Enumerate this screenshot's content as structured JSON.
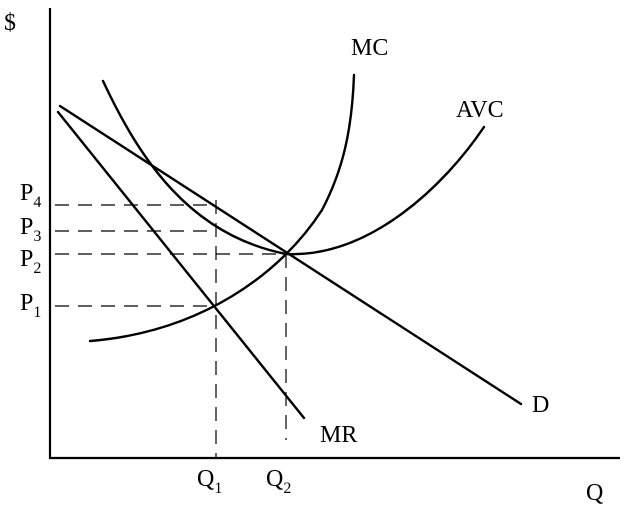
{
  "axes": {
    "y_label": "$",
    "x_label": "Q"
  },
  "curves": {
    "mc": "MC",
    "avc": "AVC",
    "demand": "D",
    "mr": "MR"
  },
  "price_levels": [
    {
      "letter": "P",
      "sub": "4"
    },
    {
      "letter": "P",
      "sub": "3"
    },
    {
      "letter": "P",
      "sub": "2"
    },
    {
      "letter": "P",
      "sub": "1"
    }
  ],
  "quantity_levels": [
    {
      "letter": "Q",
      "sub": "1"
    },
    {
      "letter": "Q",
      "sub": "2"
    }
  ]
}
